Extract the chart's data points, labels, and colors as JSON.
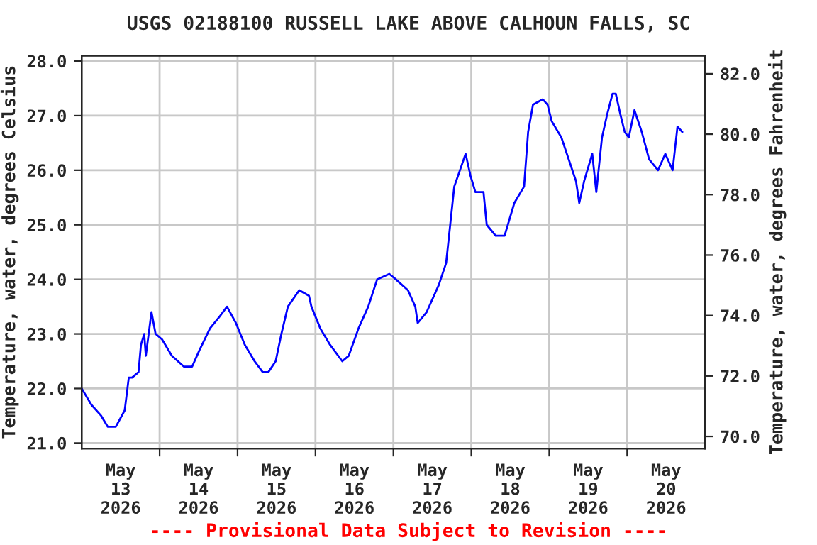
{
  "chart_data": {
    "type": "line",
    "title": "USGS 02188100 RUSSELL LAKE ABOVE CALHOUN FALLS, SC",
    "ylabel": "Temperature, water, degrees Celsius",
    "y2label": "Temperature, water, degrees Fahrenheit",
    "annotations": [
      "---- Provisional Data Subject to Revision ----"
    ],
    "x": [
      "2026-05-13T00:00",
      "2026-05-13T03:00",
      "2026-05-13T06:00",
      "2026-05-13T08:00",
      "2026-05-13T10:30",
      "2026-05-13T13:15",
      "2026-05-13T14:30",
      "2026-05-13T15:30",
      "2026-05-13T17:30",
      "2026-05-13T18:15",
      "2026-05-13T19:15",
      "2026-05-13T19:45",
      "2026-05-13T21:30",
      "2026-05-13T22:45",
      "2026-05-14T00:45",
      "2026-05-14T03:45",
      "2026-05-14T07:30",
      "2026-05-14T10:00",
      "2026-05-14T12:15",
      "2026-05-14T15:30",
      "2026-05-14T18:15",
      "2026-05-14T20:45",
      "2026-05-14T23:30",
      "2026-05-15T02:15",
      "2026-05-15T05:15",
      "2026-05-15T07:45",
      "2026-05-15T09:30",
      "2026-05-15T11:45",
      "2026-05-15T13:30",
      "2026-05-15T15:30",
      "2026-05-15T19:00",
      "2026-05-15T22:00",
      "2026-05-15T22:45",
      "2026-05-16T01:30",
      "2026-05-16T04:30",
      "2026-05-16T08:15",
      "2026-05-16T10:15",
      "2026-05-16T13:15",
      "2026-05-16T16:15",
      "2026-05-16T19:00",
      "2026-05-16T22:45",
      "2026-05-17T00:45",
      "2026-05-17T04:30",
      "2026-05-17T06:45",
      "2026-05-17T07:30",
      "2026-05-17T10:15",
      "2026-05-17T14:00",
      "2026-05-17T16:15",
      "2026-05-17T17:30",
      "2026-05-17T18:45",
      "2026-05-17T20:30",
      "2026-05-17T22:15",
      "2026-05-17T23:45",
      "2026-05-18T01:15",
      "2026-05-18T03:45",
      "2026-05-18T04:45",
      "2026-05-18T07:30",
      "2026-05-18T10:15",
      "2026-05-18T13:15",
      "2026-05-18T16:15",
      "2026-05-18T17:30",
      "2026-05-18T19:00",
      "2026-05-18T22:00",
      "2026-05-18T23:30",
      "2026-05-19T00:45",
      "2026-05-19T03:45",
      "2026-05-19T06:00",
      "2026-05-19T08:15",
      "2026-05-19T09:15",
      "2026-05-19T10:45",
      "2026-05-19T13:15",
      "2026-05-19T14:30",
      "2026-05-19T16:15",
      "2026-05-19T17:45",
      "2026-05-19T19:30",
      "2026-05-19T20:30",
      "2026-05-19T22:00",
      "2026-05-19T23:15",
      "2026-05-20T00:30",
      "2026-05-20T02:15",
      "2026-05-20T04:30",
      "2026-05-20T06:45",
      "2026-05-20T09:30",
      "2026-05-20T11:45",
      "2026-05-20T14:00",
      "2026-05-20T15:30",
      "2026-05-20T17:00"
    ],
    "series": [
      {
        "color": "#0000ff",
        "values": [
          22.0,
          21.7,
          21.5,
          21.3,
          21.3,
          21.6,
          22.2,
          22.2,
          22.3,
          22.8,
          23.0,
          22.6,
          23.4,
          23.0,
          22.9,
          22.6,
          22.4,
          22.4,
          22.7,
          23.1,
          23.3,
          23.5,
          23.2,
          22.8,
          22.5,
          22.3,
          22.3,
          22.5,
          23.0,
          23.5,
          23.8,
          23.7,
          23.5,
          23.1,
          22.8,
          22.5,
          22.6,
          23.1,
          23.5,
          24.0,
          24.1,
          24.0,
          23.8,
          23.5,
          23.2,
          23.4,
          23.9,
          24.3,
          25.0,
          25.7,
          26.0,
          26.3,
          25.9,
          25.6,
          25.6,
          25.0,
          24.8,
          24.8,
          25.4,
          25.7,
          26.7,
          27.2,
          27.3,
          27.2,
          26.9,
          26.6,
          26.2,
          25.8,
          25.4,
          25.8,
          26.3,
          25.6,
          26.6,
          27.0,
          27.4,
          27.4,
          27.0,
          26.7,
          26.6,
          27.1,
          26.7,
          26.2,
          26.0,
          26.3,
          26.0,
          26.8,
          26.7
        ]
      }
    ],
    "xlim": [
      "2026-05-13T00:00",
      "2026-05-21T00:00"
    ],
    "xticks": [
      {
        "value": "2026-05-13T12:00",
        "label": "May\n13\n2026"
      },
      {
        "value": "2026-05-14T00:00",
        "label": null
      },
      {
        "value": "2026-05-14T12:00",
        "label": "May\n14\n2026"
      },
      {
        "value": "2026-05-15T00:00",
        "label": null
      },
      {
        "value": "2026-05-15T12:00",
        "label": "May\n15\n2026"
      },
      {
        "value": "2026-05-16T00:00",
        "label": null
      },
      {
        "value": "2026-05-16T12:00",
        "label": "May\n16\n2026"
      },
      {
        "value": "2026-05-17T00:00",
        "label": null
      },
      {
        "value": "2026-05-17T12:00",
        "label": "May\n17\n2026"
      },
      {
        "value": "2026-05-18T00:00",
        "label": null
      },
      {
        "value": "2026-05-18T12:00",
        "label": "May\n18\n2026"
      },
      {
        "value": "2026-05-19T00:00",
        "label": null
      },
      {
        "value": "2026-05-19T12:00",
        "label": "May\n19\n2026"
      },
      {
        "value": "2026-05-20T00:00",
        "label": null
      },
      {
        "value": "2026-05-20T12:00",
        "label": "May\n20\n2026"
      }
    ],
    "ylim": [
      20.9,
      28.1
    ],
    "yticks": [
      {
        "value": 21,
        "label": "21.0"
      },
      {
        "value": 22,
        "label": "22.0"
      },
      {
        "value": 23,
        "label": "23.0"
      },
      {
        "value": 24,
        "label": "24.0"
      },
      {
        "value": 25,
        "label": "25.0"
      },
      {
        "value": 26,
        "label": "26.0"
      },
      {
        "value": 27,
        "label": "27.0"
      },
      {
        "value": 28,
        "label": "28.0"
      }
    ],
    "y2lim": [
      69.6,
      82.6
    ],
    "y2ticks": [
      {
        "value": 70,
        "label": "70.0"
      },
      {
        "value": 72,
        "label": "72.0"
      },
      {
        "value": 74,
        "label": "74.0"
      },
      {
        "value": 76,
        "label": "76.0"
      },
      {
        "value": 78,
        "label": "78.0"
      },
      {
        "value": 80,
        "label": "80.0"
      },
      {
        "value": 82,
        "label": "82.0"
      }
    ],
    "grid": true,
    "legend": false,
    "marker": "none",
    "line_style": "solid"
  }
}
